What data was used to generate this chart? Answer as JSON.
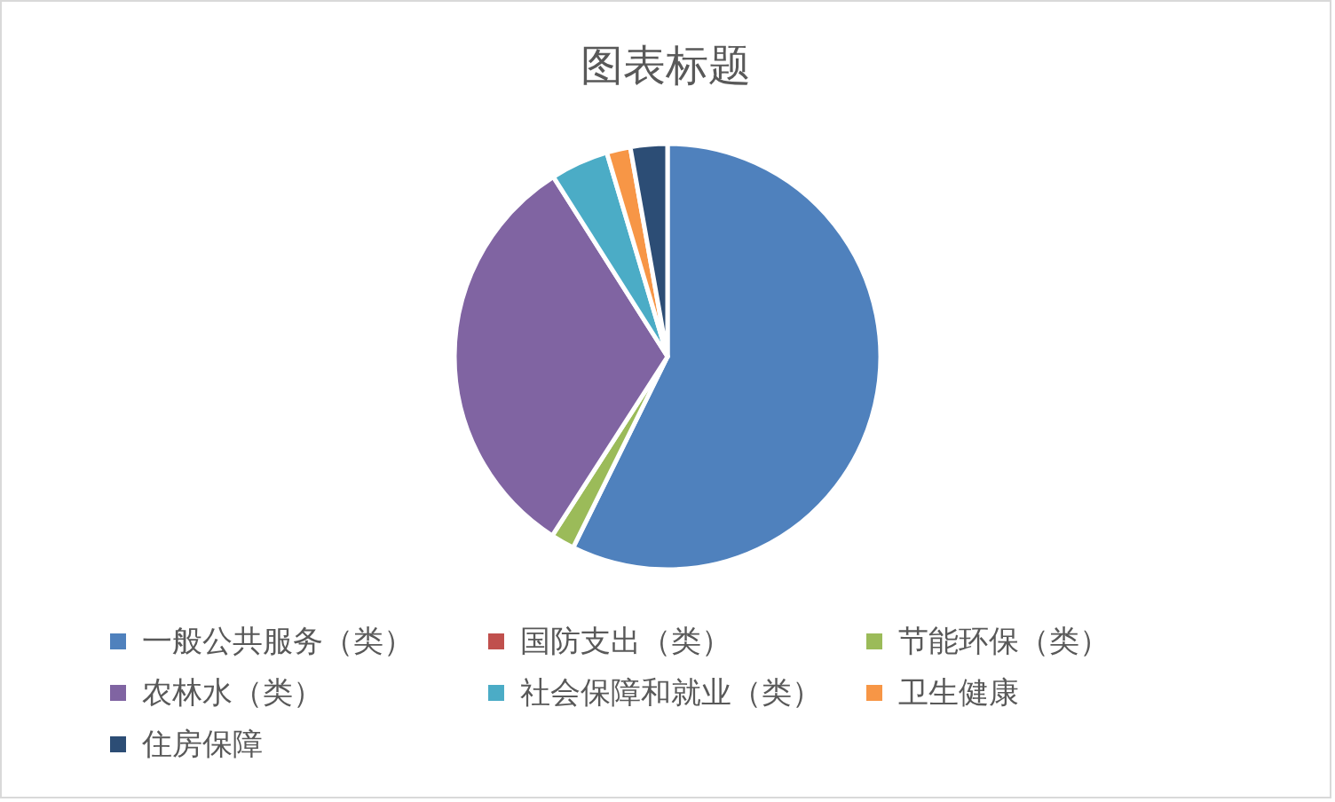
{
  "chart_data": {
    "type": "pie",
    "title": "图表标题",
    "categories": [
      "一般公共服务（类）",
      "国防支出（类）",
      "节能环保（类）",
      "农林水（类）",
      "社会保障和就业（类）",
      "卫生健康",
      "住房保障"
    ],
    "values": [
      57.3,
      0,
      1.8,
      31.9,
      4.4,
      1.8,
      2.8
    ],
    "colors": [
      "#4f81bd",
      "#c0504d",
      "#9bbb59",
      "#8064a2",
      "#4bacc6",
      "#f79646",
      "#2c4d75"
    ],
    "legend": "bottom"
  }
}
